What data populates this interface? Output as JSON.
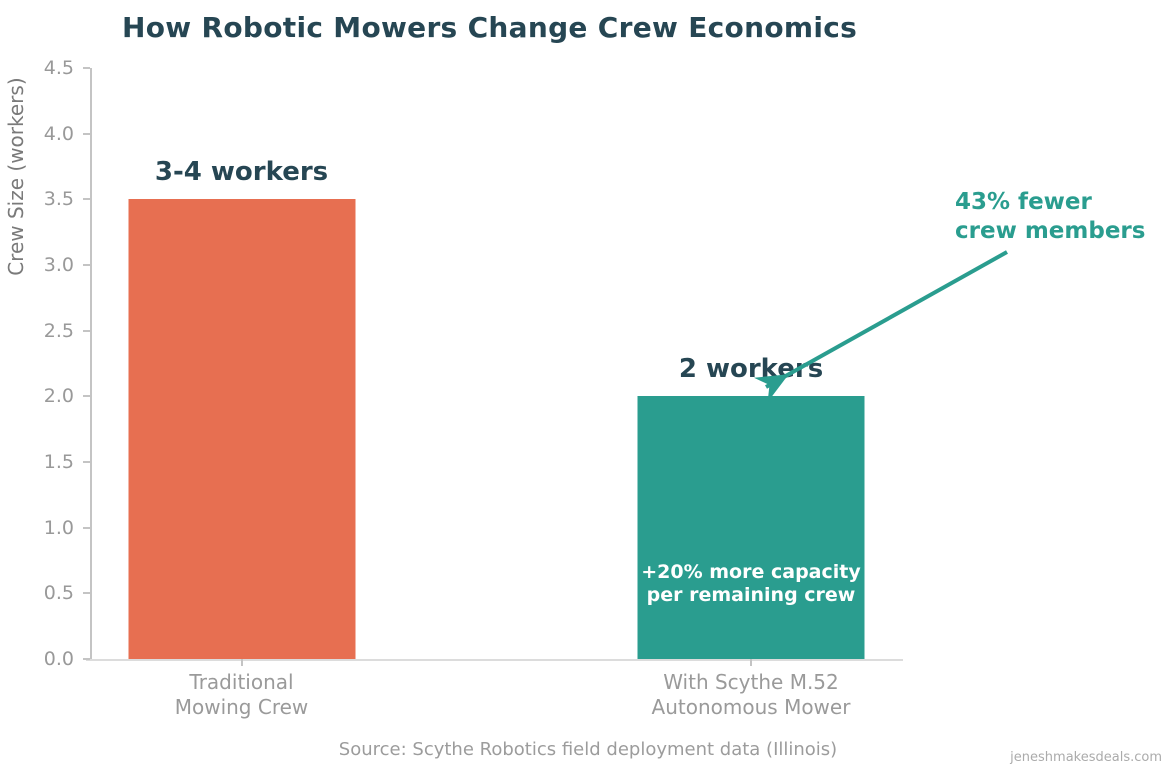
{
  "title": "How Robotic Mowers Change Crew Economics",
  "chart_data": {
    "type": "bar",
    "categories": [
      {
        "line1": "Traditional",
        "line2": "Mowing Crew"
      },
      {
        "line1": "With Scythe M.52",
        "line2": "Autonomous Mower"
      }
    ],
    "values": [
      3.5,
      2.0
    ],
    "bar_value_labels": [
      "3-4 workers",
      "2 workers"
    ],
    "bar_colors": [
      "#e76f51",
      "#2a9d8f"
    ],
    "title": "How Robotic Mowers Change Crew Economics",
    "xlabel": "",
    "ylabel": "Crew Size (workers)",
    "ylim": [
      0,
      4.5
    ],
    "ytick_step": 0.5,
    "grid": false,
    "legend": "none",
    "annotations": [
      {
        "name": "fewer-crew",
        "line1": "43% fewer",
        "line2": "crew members",
        "color": "#2a9d8f",
        "arrow_from_xy": [
          1007,
          252
        ],
        "arrow_to_xy": [
          759,
          391
        ]
      },
      {
        "name": "capacity",
        "line1": "+20% more capacity",
        "line2": "per remaining crew",
        "color": "#ffffff",
        "target": "bar 2 interior"
      }
    ]
  },
  "footer": {
    "source": "Source: Scythe Robotics field deployment data (Illinois)",
    "watermark": "jeneshmakesdeals.com"
  },
  "colors": {
    "title_text": "#264653",
    "accent_teal": "#2a9d8f",
    "accent_orange": "#e76f51",
    "tick_label": "#999999",
    "axis_label": "#7a7a7a",
    "axis_line": "#c4c4c4"
  }
}
